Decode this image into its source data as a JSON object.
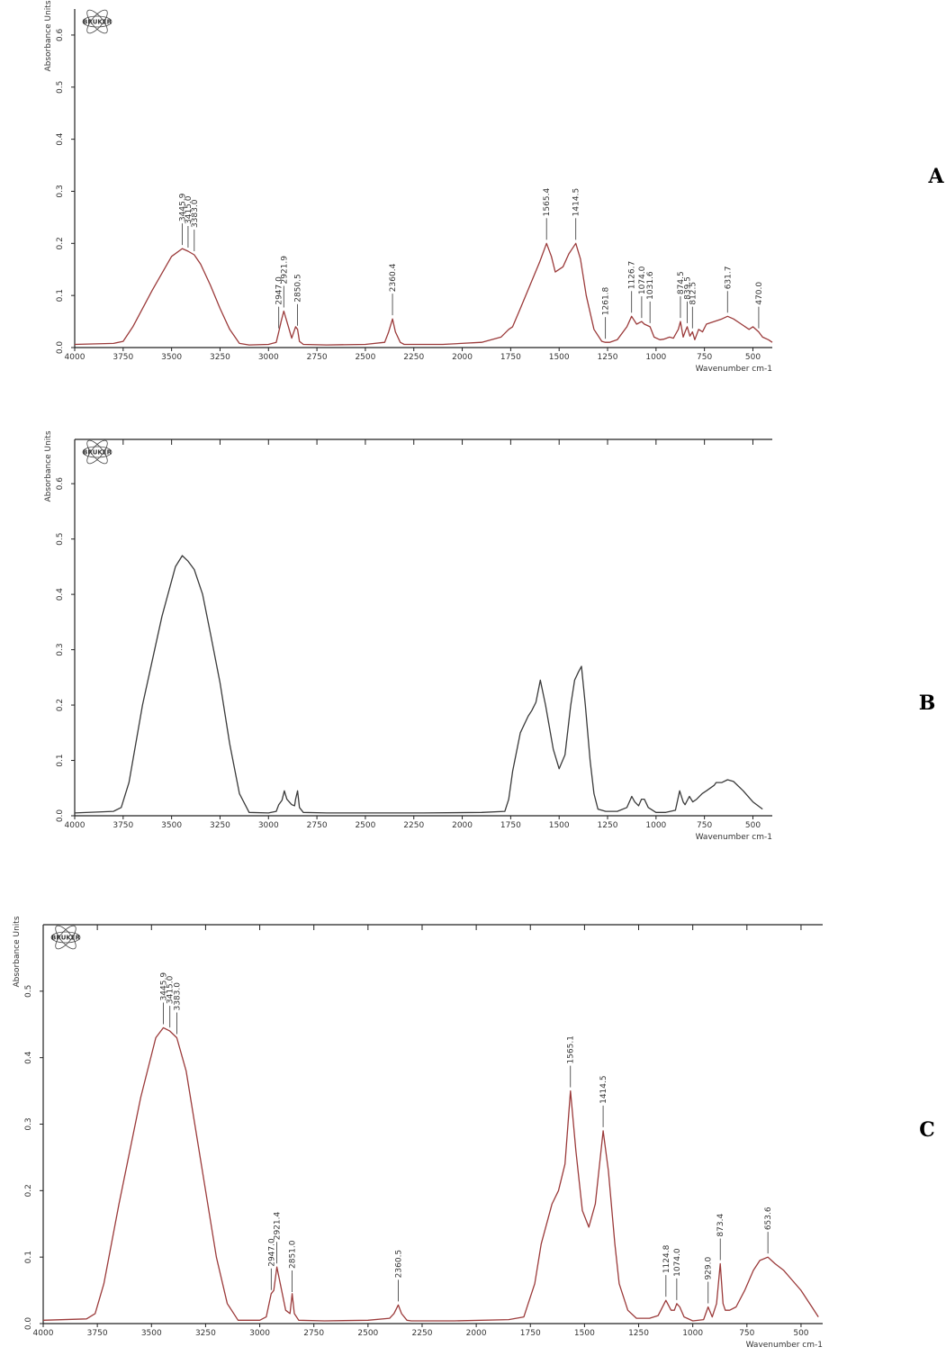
{
  "chart_data": [
    {
      "type": "line",
      "panel_label": "A",
      "logo_text": "BRUKER",
      "ylabel": "Absorbance Units",
      "xlabel": "Wavenumber cm-1",
      "xlim": [
        4000,
        400
      ],
      "ylim": [
        0.0,
        0.65
      ],
      "x_ticks": [
        4000,
        3750,
        3500,
        3250,
        3000,
        2750,
        2500,
        2250,
        2000,
        1750,
        1500,
        1250,
        1000,
        750,
        500
      ],
      "x_tick_labels": [
        "4000",
        "3750",
        "3500",
        "3250",
        "3000",
        "2750",
        "2500",
        "2250",
        "2000",
        "1750",
        "1500",
        "1250",
        "1000",
        "750",
        "500"
      ],
      "y_ticks": [
        0.0,
        0.1,
        0.2,
        0.3,
        0.4,
        0.5,
        0.6
      ],
      "y_tick_labels": [
        "0.0",
        "0.1",
        "0.2",
        "0.3",
        "0.4",
        "0.5",
        "0.6"
      ],
      "top_axis": false,
      "line_color": "#9b3a3a",
      "x": [
        4000,
        3800,
        3750,
        3700,
        3600,
        3500,
        3445,
        3415,
        3383,
        3350,
        3300,
        3250,
        3200,
        3150,
        3100,
        3000,
        2960,
        2947,
        2935,
        2921,
        2905,
        2880,
        2860,
        2850,
        2840,
        2820,
        2700,
        2500,
        2400,
        2380,
        2360,
        2345,
        2320,
        2300,
        2100,
        1900,
        1800,
        1760,
        1740,
        1700,
        1650,
        1600,
        1565,
        1540,
        1520,
        1480,
        1450,
        1414,
        1390,
        1360,
        1320,
        1280,
        1261,
        1240,
        1200,
        1150,
        1126,
        1100,
        1074,
        1060,
        1031,
        1010,
        980,
        960,
        930,
        910,
        900,
        885,
        874,
        860,
        850,
        839,
        825,
        812,
        800,
        780,
        760,
        740,
        700,
        660,
        631,
        600,
        560,
        520,
        500,
        470,
        450,
        420,
        400
      ],
      "y": [
        0.006,
        0.008,
        0.012,
        0.04,
        0.11,
        0.175,
        0.19,
        0.185,
        0.178,
        0.16,
        0.12,
        0.075,
        0.035,
        0.008,
        0.005,
        0.006,
        0.01,
        0.03,
        0.05,
        0.07,
        0.05,
        0.018,
        0.04,
        0.035,
        0.012,
        0.006,
        0.005,
        0.006,
        0.01,
        0.03,
        0.055,
        0.03,
        0.01,
        0.006,
        0.006,
        0.01,
        0.02,
        0.035,
        0.04,
        0.075,
        0.12,
        0.165,
        0.2,
        0.175,
        0.145,
        0.155,
        0.18,
        0.2,
        0.17,
        0.1,
        0.035,
        0.012,
        0.01,
        0.01,
        0.015,
        0.04,
        0.06,
        0.045,
        0.05,
        0.045,
        0.04,
        0.02,
        0.015,
        0.016,
        0.02,
        0.018,
        0.025,
        0.035,
        0.05,
        0.02,
        0.03,
        0.04,
        0.022,
        0.03,
        0.015,
        0.035,
        0.03,
        0.045,
        0.05,
        0.055,
        0.06,
        0.055,
        0.045,
        0.035,
        0.04,
        0.03,
        0.02,
        0.015,
        0.01
      ],
      "peaks": [
        {
          "x": 3445,
          "label": "3445.9"
        },
        {
          "x": 3415,
          "label": "3415.0"
        },
        {
          "x": 3383,
          "label": "3383.0"
        },
        {
          "x": 2947,
          "label": "2947.0"
        },
        {
          "x": 2921,
          "label": "2921.9"
        },
        {
          "x": 2850,
          "label": "2850.5"
        },
        {
          "x": 2360,
          "label": "2360.4"
        },
        {
          "x": 1565,
          "label": "1565.4"
        },
        {
          "x": 1414,
          "label": "1414.5"
        },
        {
          "x": 1261,
          "label": "1261.8"
        },
        {
          "x": 1126,
          "label": "1126.7"
        },
        {
          "x": 1074,
          "label": "1074.0"
        },
        {
          "x": 1031,
          "label": "1031.6"
        },
        {
          "x": 874,
          "label": "874.5"
        },
        {
          "x": 839,
          "label": "839.5"
        },
        {
          "x": 812,
          "label": "812.5"
        },
        {
          "x": 631,
          "label": "631.7"
        },
        {
          "x": 470,
          "label": "470.0"
        }
      ]
    },
    {
      "type": "line",
      "panel_label": "B",
      "logo_text": "BRUKER",
      "ylabel": "Absorbance Units",
      "xlabel": "Wavenumber cm-1",
      "xlim": [
        4000,
        400
      ],
      "ylim": [
        0.0,
        0.68
      ],
      "x_ticks": [
        4000,
        3750,
        3500,
        3250,
        3000,
        2750,
        2500,
        2250,
        2000,
        1750,
        1500,
        1250,
        1000,
        750,
        500
      ],
      "x_tick_labels": [
        "4000",
        "3750",
        "3500",
        "3250",
        "3000",
        "2750",
        "2500",
        "2250",
        "2000",
        "1750",
        "1500",
        "1250",
        "1000",
        "750",
        "500"
      ],
      "y_ticks": [
        0.0,
        0.1,
        0.2,
        0.3,
        0.4,
        0.5,
        0.6
      ],
      "y_tick_labels": [
        "0.0",
        "0.1",
        "0.2",
        "0.3",
        "0.4",
        "0.5",
        "0.6"
      ],
      "top_axis": true,
      "line_color": "#3a3a3a",
      "x": [
        4000,
        3800,
        3760,
        3720,
        3650,
        3550,
        3480,
        3445,
        3415,
        3383,
        3340,
        3300,
        3250,
        3200,
        3150,
        3100,
        3000,
        2960,
        2947,
        2930,
        2918,
        2905,
        2880,
        2865,
        2860,
        2850,
        2840,
        2820,
        2700,
        2500,
        2200,
        1900,
        1780,
        1760,
        1740,
        1700,
        1660,
        1641,
        1620,
        1597,
        1570,
        1530,
        1500,
        1470,
        1440,
        1420,
        1400,
        1385,
        1365,
        1340,
        1320,
        1300,
        1260,
        1200,
        1150,
        1125,
        1110,
        1090,
        1075,
        1060,
        1040,
        1000,
        950,
        900,
        878,
        860,
        850,
        828,
        810,
        790,
        762,
        740,
        700,
        690,
        660,
        631,
        600,
        550,
        500,
        450
      ],
      "y": [
        0.005,
        0.008,
        0.015,
        0.06,
        0.2,
        0.36,
        0.45,
        0.47,
        0.46,
        0.445,
        0.4,
        0.33,
        0.24,
        0.13,
        0.04,
        0.006,
        0.005,
        0.008,
        0.02,
        0.028,
        0.045,
        0.03,
        0.02,
        0.018,
        0.03,
        0.045,
        0.015,
        0.006,
        0.005,
        0.005,
        0.005,
        0.006,
        0.008,
        0.03,
        0.08,
        0.15,
        0.18,
        0.19,
        0.205,
        0.245,
        0.2,
        0.12,
        0.085,
        0.11,
        0.2,
        0.245,
        0.26,
        0.27,
        0.2,
        0.1,
        0.04,
        0.012,
        0.008,
        0.008,
        0.015,
        0.035,
        0.025,
        0.018,
        0.03,
        0.03,
        0.015,
        0.006,
        0.006,
        0.01,
        0.045,
        0.025,
        0.02,
        0.035,
        0.025,
        0.03,
        0.04,
        0.045,
        0.055,
        0.06,
        0.06,
        0.065,
        0.062,
        0.045,
        0.025,
        0.012
      ]
    },
    {
      "type": "line",
      "panel_label": "C",
      "logo_text": "BRUKER",
      "ylabel": "Absorbance Units",
      "xlabel": "Wavenumber cm-1",
      "xlim": [
        4000,
        400
      ],
      "ylim": [
        0.0,
        0.6
      ],
      "x_ticks": [
        4000,
        3750,
        3500,
        3250,
        3000,
        2750,
        2500,
        2250,
        2000,
        1750,
        1500,
        1250,
        1000,
        750,
        500
      ],
      "x_tick_labels": [
        "4000",
        "3750",
        "3500",
        "3250",
        "3000",
        "2750",
        "2500",
        "2250",
        "2000",
        "1750",
        "1500",
        "1250",
        "1000",
        "750",
        "500"
      ],
      "y_ticks": [
        0.0,
        0.1,
        0.2,
        0.3,
        0.4,
        0.5
      ],
      "y_tick_labels": [
        "0.0",
        "0.1",
        "0.2",
        "0.3",
        "0.4",
        "0.5"
      ],
      "top_axis": true,
      "line_color": "#9b3a3a",
      "x": [
        4000,
        3800,
        3760,
        3720,
        3650,
        3550,
        3480,
        3445,
        3415,
        3383,
        3340,
        3300,
        3250,
        3200,
        3150,
        3100,
        3000,
        2970,
        2947,
        2935,
        2921,
        2905,
        2880,
        2860,
        2850,
        2840,
        2820,
        2700,
        2500,
        2400,
        2380,
        2360,
        2345,
        2320,
        2300,
        2100,
        1850,
        1780,
        1760,
        1730,
        1700,
        1650,
        1620,
        1590,
        1565,
        1540,
        1510,
        1480,
        1450,
        1414,
        1390,
        1360,
        1340,
        1300,
        1260,
        1200,
        1160,
        1124,
        1100,
        1085,
        1074,
        1060,
        1040,
        1000,
        950,
        929,
        910,
        890,
        873,
        860,
        850,
        830,
        800,
        760,
        720,
        690,
        653,
        620,
        580,
        540,
        500,
        450,
        420
      ],
      "y": [
        0.005,
        0.007,
        0.015,
        0.06,
        0.18,
        0.34,
        0.43,
        0.445,
        0.44,
        0.43,
        0.38,
        0.3,
        0.2,
        0.1,
        0.03,
        0.005,
        0.005,
        0.01,
        0.045,
        0.05,
        0.085,
        0.06,
        0.02,
        0.015,
        0.045,
        0.015,
        0.005,
        0.004,
        0.005,
        0.008,
        0.015,
        0.028,
        0.015,
        0.005,
        0.004,
        0.004,
        0.006,
        0.01,
        0.03,
        0.06,
        0.12,
        0.18,
        0.2,
        0.24,
        0.35,
        0.26,
        0.17,
        0.145,
        0.18,
        0.29,
        0.23,
        0.12,
        0.06,
        0.02,
        0.008,
        0.008,
        0.012,
        0.035,
        0.02,
        0.02,
        0.03,
        0.025,
        0.01,
        0.004,
        0.006,
        0.025,
        0.01,
        0.03,
        0.09,
        0.03,
        0.02,
        0.02,
        0.025,
        0.05,
        0.08,
        0.095,
        0.1,
        0.09,
        0.08,
        0.065,
        0.05,
        0.025,
        0.01
      ],
      "peaks": [
        {
          "x": 3445,
          "label": "3445.9"
        },
        {
          "x": 3415,
          "label": "3415.0"
        },
        {
          "x": 3383,
          "label": "3383.0"
        },
        {
          "x": 2947,
          "label": "2947.0"
        },
        {
          "x": 2921,
          "label": "2921.4"
        },
        {
          "x": 2851,
          "label": "2851.0"
        },
        {
          "x": 2360,
          "label": "2360.5"
        },
        {
          "x": 1565,
          "label": "1565.1"
        },
        {
          "x": 1414,
          "label": "1414.5"
        },
        {
          "x": 1124,
          "label": "1124.8"
        },
        {
          "x": 1074,
          "label": "1074.0"
        },
        {
          "x": 929,
          "label": "929.0"
        },
        {
          "x": 873,
          "label": "873.4"
        },
        {
          "x": 653,
          "label": "653.6"
        }
      ]
    }
  ]
}
